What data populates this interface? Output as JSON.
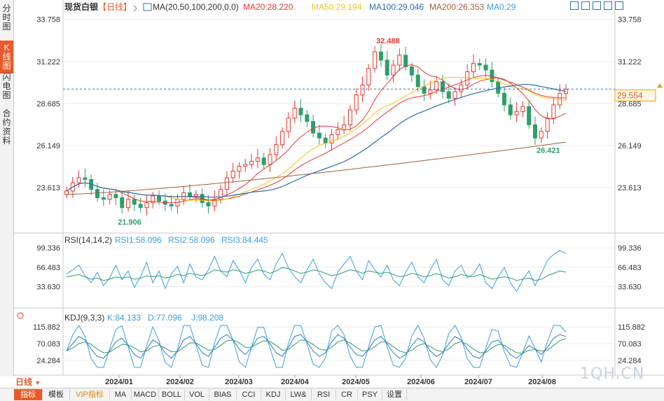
{
  "instrument": "现货白银",
  "period": "【日线】",
  "side_tabs": [
    "分时图",
    "K线图",
    "闪电图",
    "合约资料"
  ],
  "main_legend": {
    "label": "MA(20,50,100,200,0,0)",
    "items": [
      {
        "text": "MA20:28.220",
        "color": "#e8382f"
      },
      {
        "text": "MA50:29.194",
        "color": "#e8c81b"
      },
      {
        "text": "MA100:29.046",
        "color": "#2c6bb0"
      },
      {
        "text": "MA200:26.353",
        "color": "#a0603a"
      },
      {
        "text": "MA0:29",
        "color": "#3f9de0"
      }
    ]
  },
  "rsi_legend": {
    "label": "RSI(14,14,2)",
    "items": [
      {
        "text": "RSI1:58.096",
        "color": "#3f9de0"
      },
      {
        "text": "RSI2:58.096",
        "color": "#3f9de0"
      },
      {
        "text": "RSI3:84.445",
        "color": "#3f9de0"
      }
    ]
  },
  "kdj_legend": {
    "label": "KDJ(9,3,3)",
    "items": [
      {
        "text": "K:84.133",
        "color": "#3f9de0"
      },
      {
        "text": "D:77.096",
        "color": "#3f9de0"
      },
      {
        "text": "J:98.208",
        "color": "#3f9de0"
      }
    ]
  },
  "price_ticks": [
    "33.758",
    "31.222",
    "28.685",
    "26.149",
    "23.613"
  ],
  "rsi_ticks": [
    "99.336",
    "66.483",
    "33.630"
  ],
  "kdj_ticks": [
    "115.882",
    "70.083",
    "24.284"
  ],
  "date_labels": [
    "2024/01",
    "2024/02",
    "2024/03",
    "2024/04",
    "2024/05",
    "2024/06",
    "2024/07",
    "2024/08"
  ],
  "annotations": {
    "high": "32.488",
    "low1": "21.906",
    "low2": "26.421",
    "current": "29.554"
  },
  "bottom_tabs": [
    "指标",
    "模板",
    "VIP指标",
    "MA",
    "MACD",
    "BOLL",
    "VOL",
    "BIAS",
    "CCI",
    "KDJ",
    "LW&",
    "RSI",
    "CR",
    "PSY",
    "设置"
  ],
  "period_button": "日线",
  "watermark": "1QH.CN",
  "colors": {
    "up": "#e8382f",
    "down": "#2e9e6b",
    "accent": "#e85a2b",
    "grid": "#e6e6e6"
  },
  "chart_data": {
    "type": "candlestick",
    "title": "现货白银 日线",
    "x": [
      "2024/01",
      "2024/02",
      "2024/03",
      "2024/04",
      "2024/05",
      "2024/06",
      "2024/07",
      "2024/08"
    ],
    "price_range": [
      21.5,
      34.0
    ],
    "current_price": 29.554,
    "period_high": 32.488,
    "period_low": 21.906,
    "recent_low": 26.421,
    "moving_averages": {
      "MA20": 28.22,
      "MA50": 29.194,
      "MA100": 29.046,
      "MA200": 26.353
    },
    "rsi": {
      "RSI1": 58.096,
      "RSI2": 58.096,
      "RSI3": 84.445
    },
    "kdj": {
      "K": 84.133,
      "D": 77.096,
      "J": 98.208
    },
    "close_path": [
      23.4,
      23.9,
      24.2,
      24.1,
      23.5,
      23.0,
      22.9,
      23.2,
      23.0,
      22.4,
      22.9,
      22.6,
      22.4,
      22.7,
      23.1,
      22.8,
      22.6,
      22.5,
      22.9,
      23.3,
      23.1,
      23.2,
      22.7,
      22.5,
      22.9,
      23.5,
      24.2,
      24.6,
      24.9,
      25.0,
      25.2,
      25.4,
      25.0,
      25.6,
      26.2,
      27.0,
      27.8,
      28.4,
      28.0,
      27.6,
      26.9,
      26.6,
      26.3,
      26.8,
      27.1,
      27.4,
      28.3,
      29.2,
      29.8,
      30.8,
      31.8,
      31.3,
      30.4,
      31.0,
      31.6,
      30.9,
      30.4,
      29.7,
      29.3,
      29.5,
      30.0,
      29.4,
      29.0,
      29.4,
      29.8,
      30.6,
      31.1,
      31.0,
      30.7,
      30.0,
      29.3,
      28.6,
      28.0,
      28.2,
      28.5,
      27.4,
      26.6,
      27.0,
      27.8,
      28.6,
      29.3,
      29.55
    ],
    "rsi1_path": [
      55,
      62,
      70,
      52,
      40,
      58,
      35,
      48,
      70,
      45,
      60,
      32,
      50,
      75,
      40,
      60,
      30,
      55,
      68,
      40,
      72,
      50,
      45,
      62,
      85,
      60,
      50,
      78,
      62,
      40,
      66,
      80,
      55,
      45,
      72,
      90,
      65,
      50,
      40,
      62,
      80,
      55,
      40,
      30,
      58,
      72,
      85,
      60,
      45,
      78,
      62,
      50,
      70,
      45,
      35,
      58,
      75,
      50,
      40,
      62,
      80,
      45,
      35,
      60,
      70,
      48,
      55,
      72,
      40,
      30,
      50,
      66,
      40,
      25,
      45,
      60,
      35,
      55,
      78,
      88,
      95,
      90
    ],
    "rsi3_path": [
      50,
      52,
      54,
      50,
      46,
      48,
      44,
      46,
      50,
      48,
      50,
      46,
      48,
      52,
      50,
      52,
      48,
      50,
      54,
      52,
      56,
      54,
      52,
      56,
      62,
      60,
      58,
      62,
      60,
      56,
      58,
      62,
      60,
      56,
      60,
      66,
      64,
      60,
      56,
      58,
      62,
      60,
      56,
      52,
      54,
      58,
      62,
      60,
      56,
      60,
      58,
      56,
      58,
      54,
      50,
      52,
      56,
      54,
      50,
      52,
      56,
      52,
      48,
      50,
      54,
      52,
      50,
      54,
      50,
      46,
      48,
      50,
      48,
      44,
      46,
      48,
      44,
      46,
      52,
      56,
      60,
      58
    ],
    "kdj_k_path": [
      50,
      70,
      90,
      80,
      55,
      35,
      30,
      50,
      75,
      85,
      65,
      40,
      30,
      55,
      80,
      70,
      45,
      30,
      50,
      80,
      90,
      70,
      45,
      35,
      60,
      85,
      95,
      80,
      55,
      40,
      60,
      85,
      90,
      70,
      45,
      35,
      60,
      90,
      95,
      75,
      50,
      35,
      45,
      75,
      95,
      85,
      60,
      40,
      35,
      55,
      80,
      90,
      70,
      45,
      30,
      40,
      65,
      85,
      75,
      50,
      35,
      45,
      70,
      90,
      80,
      55,
      35,
      30,
      50,
      75,
      80,
      60,
      40,
      30,
      45,
      65,
      55,
      40,
      60,
      85,
      95,
      90
    ],
    "kdj_d_path": [
      50,
      58,
      70,
      75,
      68,
      55,
      45,
      47,
      58,
      68,
      67,
      58,
      48,
      50,
      62,
      66,
      58,
      48,
      48,
      60,
      72,
      72,
      62,
      52,
      54,
      65,
      78,
      80,
      72,
      60,
      60,
      70,
      78,
      76,
      65,
      52,
      54,
      68,
      80,
      78,
      68,
      55,
      52,
      60,
      75,
      80,
      72,
      60,
      50,
      52,
      62,
      75,
      74,
      62,
      50,
      45,
      52,
      65,
      70,
      62,
      52,
      48,
      56,
      70,
      76,
      68,
      55,
      45,
      46,
      58,
      68,
      66,
      55,
      45,
      44,
      52,
      54,
      50,
      52,
      65,
      78,
      84
    ]
  }
}
